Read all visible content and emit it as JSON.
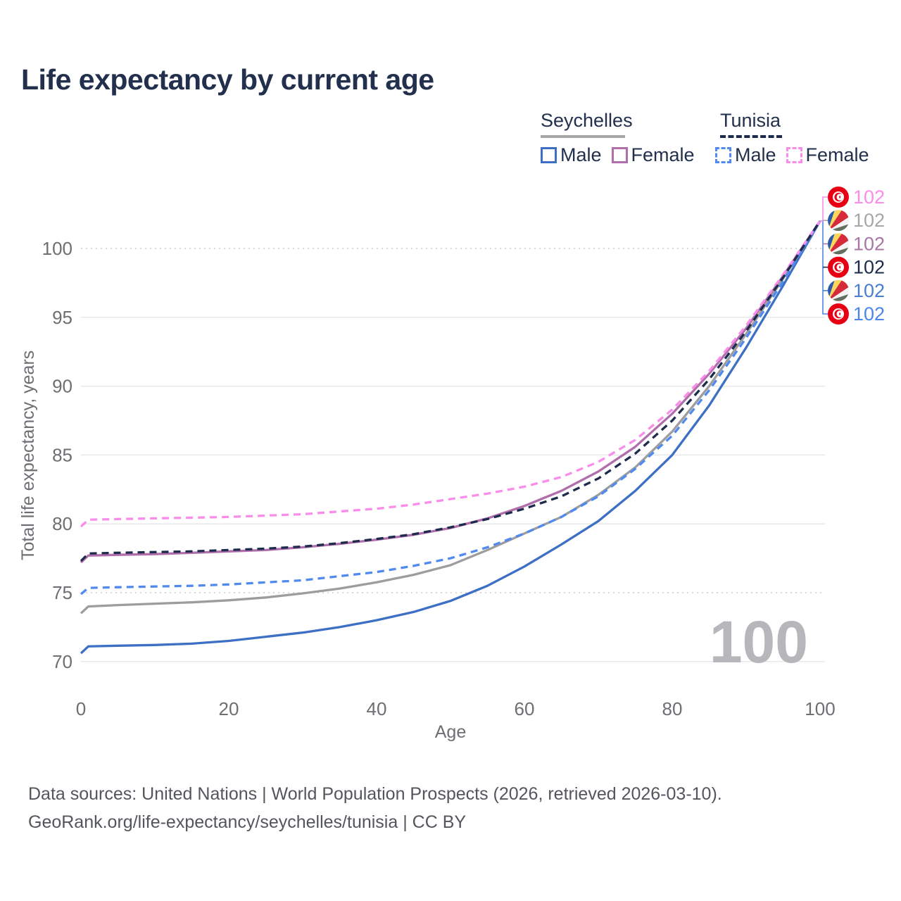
{
  "title": "Life expectancy by current age",
  "legend": {
    "groups": [
      {
        "name": "Seychelles",
        "underline_style": "solid",
        "underline_color": "#a6a6a6",
        "items": [
          {
            "label": "Male",
            "swatch_color": "#3d6fc4",
            "swatch_dash": false
          },
          {
            "label": "Female",
            "swatch_color": "#b06fab",
            "swatch_dash": false
          }
        ]
      },
      {
        "name": "Tunisia",
        "underline_style": "dashed",
        "underline_color": "#1d2b4c",
        "items": [
          {
            "label": "Male",
            "swatch_color": "#5089ef",
            "swatch_dash": true
          },
          {
            "label": "Female",
            "swatch_color": "#fa8cea",
            "swatch_dash": true
          }
        ]
      }
    ]
  },
  "chart_data": {
    "type": "line",
    "title": "Life expectancy by current age",
    "xlabel": "Age",
    "ylabel": "Total life expectancy, years",
    "xlim": [
      0,
      100
    ],
    "ylim": [
      69,
      103.5
    ],
    "x_ticks": [
      0,
      20,
      40,
      60,
      80,
      100
    ],
    "y_ticks": [
      {
        "value": 70,
        "style": "solid"
      },
      {
        "value": 75,
        "style": "dotted"
      },
      {
        "value": 80,
        "style": "solid"
      },
      {
        "value": 85,
        "style": "solid"
      },
      {
        "value": 90,
        "style": "solid"
      },
      {
        "value": 95,
        "style": "solid"
      },
      {
        "value": 100,
        "style": "dotted"
      }
    ],
    "grid": true,
    "legend_position": "top-right",
    "watermark": "100",
    "series": [
      {
        "name": "Seychelles Male",
        "country": "Seychelles",
        "sex": "Male",
        "color": "#3d6fc4",
        "dash": false,
        "points": [
          [
            0,
            70.6
          ],
          [
            1,
            71.1
          ],
          [
            5,
            71.15
          ],
          [
            10,
            71.2
          ],
          [
            15,
            71.3
          ],
          [
            20,
            71.5
          ],
          [
            25,
            71.8
          ],
          [
            30,
            72.1
          ],
          [
            35,
            72.5
          ],
          [
            40,
            73.0
          ],
          [
            45,
            73.6
          ],
          [
            50,
            74.4
          ],
          [
            55,
            75.5
          ],
          [
            60,
            76.9
          ],
          [
            65,
            78.5
          ],
          [
            70,
            80.2
          ],
          [
            75,
            82.4
          ],
          [
            80,
            85.0
          ],
          [
            85,
            88.6
          ],
          [
            90,
            92.8
          ],
          [
            95,
            97.3
          ],
          [
            100,
            102
          ]
        ]
      },
      {
        "name": "Seychelles Female",
        "country": "Seychelles",
        "sex": "Female",
        "color": "#b06fab",
        "dash": false,
        "points": [
          [
            0,
            77.2
          ],
          [
            1,
            77.7
          ],
          [
            5,
            77.75
          ],
          [
            10,
            77.8
          ],
          [
            15,
            77.9
          ],
          [
            20,
            78.0
          ],
          [
            25,
            78.1
          ],
          [
            30,
            78.3
          ],
          [
            35,
            78.55
          ],
          [
            40,
            78.85
          ],
          [
            45,
            79.2
          ],
          [
            50,
            79.7
          ],
          [
            55,
            80.4
          ],
          [
            60,
            81.3
          ],
          [
            65,
            82.4
          ],
          [
            70,
            83.8
          ],
          [
            75,
            85.6
          ],
          [
            80,
            88.0
          ],
          [
            85,
            90.9
          ],
          [
            90,
            94.2
          ],
          [
            95,
            98.0
          ],
          [
            100,
            102
          ]
        ]
      },
      {
        "name": "Seychelles",
        "country": "Seychelles",
        "sex": "Both",
        "color": "#9d9da0",
        "dash": false,
        "points": [
          [
            0,
            73.5
          ],
          [
            1,
            74.0
          ],
          [
            5,
            74.1
          ],
          [
            10,
            74.2
          ],
          [
            15,
            74.3
          ],
          [
            20,
            74.45
          ],
          [
            25,
            74.65
          ],
          [
            30,
            74.95
          ],
          [
            35,
            75.3
          ],
          [
            40,
            75.75
          ],
          [
            45,
            76.3
          ],
          [
            50,
            77.0
          ],
          [
            55,
            78.1
          ],
          [
            60,
            79.3
          ],
          [
            65,
            80.5
          ],
          [
            70,
            82.1
          ],
          [
            75,
            84.1
          ],
          [
            80,
            86.7
          ],
          [
            85,
            90.0
          ],
          [
            90,
            93.8
          ],
          [
            95,
            97.8
          ],
          [
            100,
            102
          ]
        ]
      },
      {
        "name": "Tunisia Male",
        "country": "Tunisia",
        "sex": "Male",
        "color": "#5089ef",
        "dash": true,
        "points": [
          [
            0,
            74.9
          ],
          [
            1,
            75.35
          ],
          [
            5,
            75.4
          ],
          [
            10,
            75.45
          ],
          [
            15,
            75.5
          ],
          [
            20,
            75.6
          ],
          [
            25,
            75.75
          ],
          [
            30,
            75.9
          ],
          [
            35,
            76.2
          ],
          [
            40,
            76.5
          ],
          [
            45,
            76.95
          ],
          [
            50,
            77.5
          ],
          [
            55,
            78.3
          ],
          [
            60,
            79.3
          ],
          [
            65,
            80.5
          ],
          [
            70,
            82.0
          ],
          [
            75,
            84.0
          ],
          [
            80,
            86.4
          ],
          [
            85,
            89.7
          ],
          [
            90,
            93.5
          ],
          [
            95,
            97.6
          ],
          [
            100,
            102
          ]
        ]
      },
      {
        "name": "Tunisia Female",
        "country": "Tunisia",
        "sex": "Female",
        "color": "#fa8cea",
        "dash": true,
        "points": [
          [
            0,
            79.8
          ],
          [
            1,
            80.3
          ],
          [
            5,
            80.35
          ],
          [
            10,
            80.4
          ],
          [
            15,
            80.45
          ],
          [
            20,
            80.5
          ],
          [
            25,
            80.6
          ],
          [
            30,
            80.7
          ],
          [
            35,
            80.9
          ],
          [
            40,
            81.1
          ],
          [
            45,
            81.4
          ],
          [
            50,
            81.8
          ],
          [
            55,
            82.2
          ],
          [
            60,
            82.7
          ],
          [
            65,
            83.4
          ],
          [
            70,
            84.5
          ],
          [
            75,
            86.1
          ],
          [
            80,
            88.3
          ],
          [
            85,
            91.1
          ],
          [
            90,
            94.4
          ],
          [
            95,
            98.1
          ],
          [
            100,
            102
          ]
        ]
      },
      {
        "name": "Tunisia",
        "country": "Tunisia",
        "sex": "Both",
        "color": "#1d2b4c",
        "dash": true,
        "points": [
          [
            0,
            77.3
          ],
          [
            1,
            77.85
          ],
          [
            5,
            77.9
          ],
          [
            10,
            77.95
          ],
          [
            15,
            78.0
          ],
          [
            20,
            78.1
          ],
          [
            25,
            78.2
          ],
          [
            30,
            78.35
          ],
          [
            35,
            78.6
          ],
          [
            40,
            78.9
          ],
          [
            45,
            79.25
          ],
          [
            50,
            79.75
          ],
          [
            55,
            80.35
          ],
          [
            60,
            81.1
          ],
          [
            65,
            82.0
          ],
          [
            70,
            83.3
          ],
          [
            75,
            85.1
          ],
          [
            80,
            87.5
          ],
          [
            85,
            90.5
          ],
          [
            90,
            94.0
          ],
          [
            95,
            97.9
          ],
          [
            100,
            102
          ]
        ]
      }
    ],
    "end_annotations": [
      {
        "flag": "tunisia",
        "icon": "tunisia-flag-icon",
        "label": "102",
        "color": "#fa8cea",
        "series": "Tunisia Female"
      },
      {
        "flag": "seychelles",
        "icon": "seychelles-flag-icon",
        "label": "102",
        "color": "#a7a7aa",
        "series": "Seychelles"
      },
      {
        "flag": "seychelles",
        "icon": "seychelles-flag-icon",
        "label": "102",
        "color": "#a877a8",
        "series": "Seychelles Female"
      },
      {
        "flag": "tunisia",
        "icon": "tunisia-flag-icon",
        "label": "102",
        "color": "#1d2b4c",
        "series": "Tunisia"
      },
      {
        "flag": "seychelles",
        "icon": "seychelles-flag-icon",
        "label": "102",
        "color": "#4a7ed0",
        "series": "Seychelles Male"
      },
      {
        "flag": "tunisia",
        "icon": "tunisia-flag-icon",
        "label": "102",
        "color": "#4a86e8",
        "series": "Tunisia Male"
      }
    ]
  },
  "footer": {
    "line1": "Data sources: United Nations | World Population Prospects (2026, retrieved 2026-03-10).",
    "line2": "GeoRank.org/life-expectancy/seychelles/tunisia | CC BY"
  }
}
